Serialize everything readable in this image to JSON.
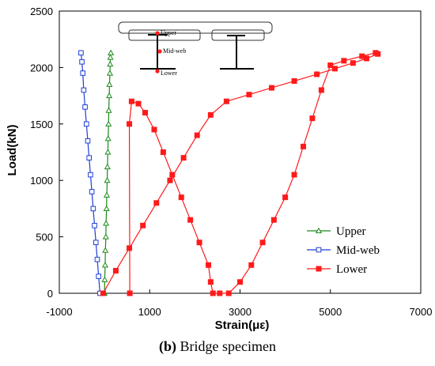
{
  "caption": {
    "letter": "(b)",
    "text": " Bridge specimen"
  },
  "inset": {
    "labels": [
      "Upper",
      "Mid-web",
      "Lower"
    ]
  },
  "chart_data": {
    "type": "scatter",
    "xlabel": "Strain(με)",
    "ylabel": "Load(kN)",
    "xlim": [
      -1000,
      7000
    ],
    "ylim": [
      0,
      2500
    ],
    "xticks": [
      -1000,
      1000,
      3000,
      5000,
      7000
    ],
    "yticks": [
      0,
      500,
      1000,
      1500,
      2000,
      2500
    ],
    "grid": false,
    "legend_position": "bottom-right",
    "series": [
      {
        "name": "Upper",
        "color": "#1a8a1a",
        "marker": "triangle-open",
        "x": [
          0,
          5,
          15,
          20,
          30,
          35,
          45,
          50,
          60,
          65,
          75,
          80,
          90,
          95,
          105,
          110,
          120,
          125,
          130,
          140
        ],
        "y": [
          0,
          120,
          250,
          380,
          500,
          620,
          750,
          870,
          1000,
          1120,
          1250,
          1370,
          1500,
          1620,
          1750,
          1850,
          1950,
          2030,
          2090,
          2130
        ]
      },
      {
        "name": "Mid-web",
        "color": "#1f3fd6",
        "marker": "square-open",
        "x": [
          -100,
          -130,
          -160,
          -190,
          -220,
          -250,
          -280,
          -310,
          -340,
          -370,
          -400,
          -430,
          -460,
          -480,
          -500,
          -520
        ],
        "y": [
          0,
          150,
          300,
          450,
          600,
          750,
          900,
          1050,
          1200,
          1350,
          1500,
          1650,
          1800,
          1950,
          2050,
          2130
        ]
      },
      {
        "name": "Lower",
        "color": "#ff1a1a",
        "marker": "square-filled",
        "x": [
          -30,
          250,
          550,
          850,
          1150,
          1450,
          1750,
          2050,
          2350,
          2700,
          3200,
          3700,
          4200,
          4700,
          5100,
          5500,
          5800,
          6050,
          6000,
          5700,
          5300,
          5000,
          4800,
          4600,
          4400,
          4200,
          4000,
          3750,
          3500,
          3250,
          3000,
          2750,
          2550,
          2400,
          2350,
          2300,
          2100,
          1900,
          1700,
          1500,
          1300,
          1100,
          900,
          750,
          600,
          550,
          560
        ],
        "y": [
          0,
          200,
          400,
          600,
          800,
          1000,
          1200,
          1400,
          1580,
          1700,
          1760,
          1820,
          1880,
          1940,
          1990,
          2040,
          2080,
          2120,
          2130,
          2100,
          2060,
          2020,
          1800,
          1550,
          1300,
          1050,
          850,
          650,
          450,
          250,
          100,
          0,
          0,
          0,
          100,
          250,
          450,
          650,
          850,
          1050,
          1250,
          1450,
          1600,
          1680,
          1700,
          1500,
          0
        ]
      }
    ]
  }
}
